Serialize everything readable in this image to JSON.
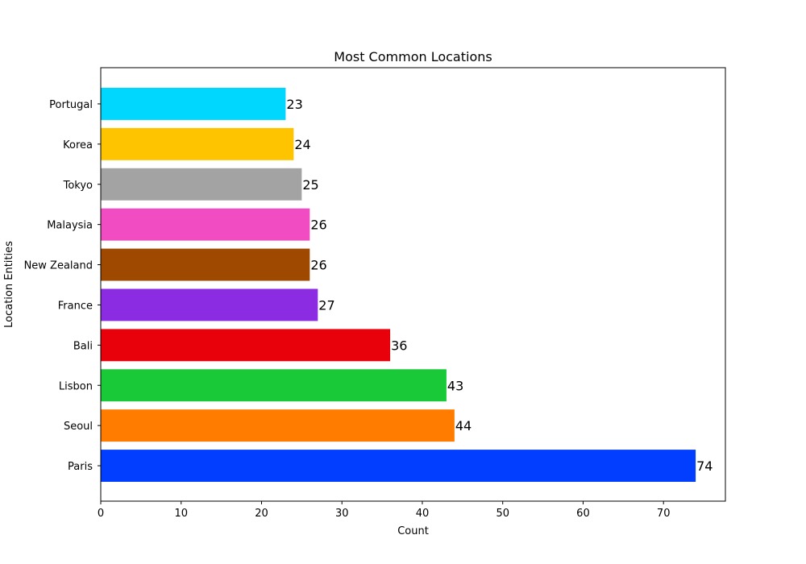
{
  "chart_data": {
    "type": "bar",
    "orientation": "horizontal",
    "title": "Most Common Locations",
    "xlabel": "Count",
    "ylabel": "Location Entities",
    "xlim": [
      0,
      77.7
    ],
    "xticks": [
      0,
      10,
      20,
      30,
      40,
      50,
      60,
      70
    ],
    "grid": false,
    "categories": [
      "Paris",
      "Seoul",
      "Lisbon",
      "Bali",
      "France",
      "New Zealand",
      "Malaysia",
      "Tokyo",
      "Korea",
      "Portugal"
    ],
    "values": [
      74,
      44,
      43,
      36,
      27,
      26,
      26,
      25,
      24,
      23
    ],
    "value_labels": [
      "74",
      "44",
      "43",
      "36",
      "27",
      "26",
      "26",
      "25",
      "24",
      "23"
    ],
    "colors": [
      "#023eff",
      "#ff7c00",
      "#1ac938",
      "#e8000b",
      "#8b2be2",
      "#9f4800",
      "#f14cc1",
      "#a3a3a3",
      "#ffc400",
      "#00d7ff"
    ]
  }
}
